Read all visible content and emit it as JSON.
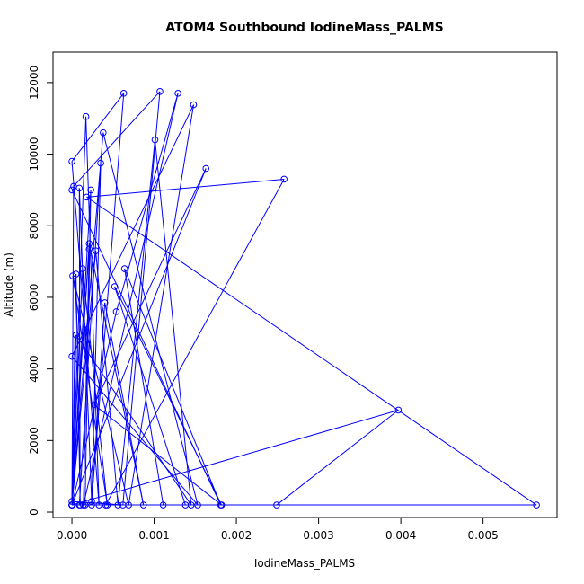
{
  "chart_data": {
    "type": "line",
    "title": "ATOM4 Southbound IodineMass_PALMS",
    "xlabel": "IodineMass_PALMS",
    "ylabel": "Altitude (m)",
    "xlim": [
      -0.00023,
      0.0059
    ],
    "ylim": [
      -150,
      12850
    ],
    "x_ticks": [
      0,
      0.001,
      0.002,
      0.003,
      0.004,
      0.005
    ],
    "x_tick_labels": [
      "0.000",
      "0.001",
      "0.002",
      "0.003",
      "0.004",
      "0.005"
    ],
    "y_ticks": [
      0,
      2000,
      4000,
      6000,
      8000,
      10000,
      12000
    ],
    "y_tick_labels": [
      "0",
      "2000",
      "4000",
      "6000",
      "8000",
      "10000",
      "12000"
    ],
    "grid": false,
    "legend": "none",
    "series": [
      {
        "color": "#0000ff",
        "marker": "open-circle",
        "line": true,
        "x": [
          0.0,
          0.00017,
          0.00033,
          0.0,
          0.00063,
          0.00024,
          9e-05,
          0.0001,
          5e-05,
          0.0,
          2e-05,
          0.00107,
          0.00062,
          0.0,
          0.00021,
          0.00014,
          0.00129,
          0.00054,
          0.0,
          0.00038,
          0.00153,
          0.0,
          0.00148,
          0.00069,
          1e-05,
          0.00043,
          0.00013,
          0.0,
          0.00029,
          0.00056,
          0.00101,
          0.00145,
          5e-05,
          0.0,
          0.00021,
          0.00087,
          0.0004,
          0.00024,
          0.00035,
          9e-05,
          0.00249,
          0.00397,
          0.0,
          0.00138,
          0.00052,
          0.00182,
          0.00027,
          0.00163,
          0.0,
          0.00023,
          0.00016,
          0.00565,
          0.00018,
          0.00258,
          0.00041,
          0.00111,
          0.00064,
          0.00181,
          0.0
        ],
        "y": [
          200,
          11050,
          200,
          9800,
          11700,
          300,
          9050,
          200,
          6650,
          200,
          9100,
          11750,
          200,
          300,
          7350,
          200,
          11700,
          5600,
          200,
          10600,
          200,
          4350,
          11380,
          200,
          6600,
          200,
          6800,
          200,
          7300,
          200,
          10400,
          200,
          4950,
          200,
          7500,
          200,
          5850,
          200,
          9750,
          200,
          200,
          2850,
          200,
          200,
          6300,
          200,
          3000,
          9600,
          200,
          9000,
          200,
          200,
          8800,
          9300,
          200,
          200,
          6800,
          200,
          9000
        ]
      }
    ]
  }
}
